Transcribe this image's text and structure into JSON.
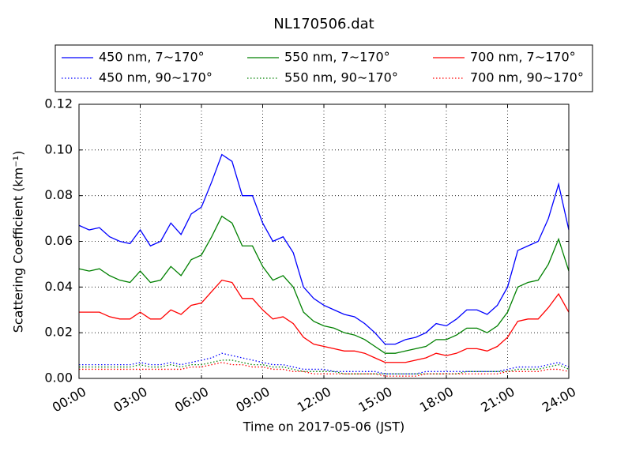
{
  "chart_data": {
    "type": "line",
    "title": "NL170506.dat",
    "xlabel": "Time on 2017-05-06 (JST)",
    "ylabel": "Scattering Coefficient (km⁻¹)",
    "x": [
      0,
      0.5,
      1,
      1.5,
      2,
      2.5,
      3,
      3.5,
      4,
      4.5,
      5,
      5.5,
      6,
      6.5,
      7,
      7.5,
      8,
      8.5,
      9,
      9.5,
      10,
      10.5,
      11,
      11.5,
      12,
      12.5,
      13,
      13.5,
      14,
      14.5,
      15,
      15.5,
      16,
      16.5,
      17,
      17.5,
      18,
      18.5,
      19,
      19.5,
      20,
      20.5,
      21,
      21.5,
      22,
      22.5,
      23,
      23.5,
      24
    ],
    "xlim": [
      0,
      24
    ],
    "xticks": [
      {
        "value": 0,
        "label": "00:00"
      },
      {
        "value": 3,
        "label": "03:00"
      },
      {
        "value": 6,
        "label": "06:00"
      },
      {
        "value": 9,
        "label": "09:00"
      },
      {
        "value": 12,
        "label": "12:00"
      },
      {
        "value": 15,
        "label": "15:00"
      },
      {
        "value": 18,
        "label": "18:00"
      },
      {
        "value": 21,
        "label": "21:00"
      },
      {
        "value": 24,
        "label": "24:00"
      }
    ],
    "ylim": [
      0,
      0.12
    ],
    "yticks": [
      {
        "value": 0,
        "label": "0.00"
      },
      {
        "value": 0.02,
        "label": "0.02"
      },
      {
        "value": 0.04,
        "label": "0.04"
      },
      {
        "value": 0.06,
        "label": "0.06"
      },
      {
        "value": 0.08,
        "label": "0.08"
      },
      {
        "value": 0.1,
        "label": "0.10"
      },
      {
        "value": 0.12,
        "label": "0.12"
      }
    ],
    "grid": true,
    "legend": "top",
    "series": [
      {
        "name": "450 nm, 7∼170°",
        "color": "#0000ff",
        "style": "solid",
        "values": [
          0.067,
          0.065,
          0.066,
          0.062,
          0.06,
          0.059,
          0.065,
          0.058,
          0.06,
          0.068,
          0.063,
          0.072,
          0.075,
          0.086,
          0.098,
          0.095,
          0.08,
          0.08,
          0.068,
          0.06,
          0.062,
          0.055,
          0.04,
          0.035,
          0.032,
          0.03,
          0.028,
          0.027,
          0.024,
          0.02,
          0.015,
          0.015,
          0.017,
          0.018,
          0.02,
          0.024,
          0.023,
          0.026,
          0.03,
          0.03,
          0.028,
          0.032,
          0.04,
          0.056,
          0.058,
          0.06,
          0.07,
          0.085,
          0.065
        ]
      },
      {
        "name": "550 nm, 7∼170°",
        "color": "#008000",
        "style": "solid",
        "values": [
          0.048,
          0.047,
          0.048,
          0.045,
          0.043,
          0.042,
          0.047,
          0.042,
          0.043,
          0.049,
          0.045,
          0.052,
          0.054,
          0.062,
          0.071,
          0.068,
          0.058,
          0.058,
          0.049,
          0.043,
          0.045,
          0.04,
          0.029,
          0.025,
          0.023,
          0.022,
          0.02,
          0.019,
          0.017,
          0.014,
          0.011,
          0.011,
          0.012,
          0.013,
          0.014,
          0.017,
          0.017,
          0.019,
          0.022,
          0.022,
          0.02,
          0.023,
          0.029,
          0.04,
          0.042,
          0.043,
          0.05,
          0.061,
          0.047
        ]
      },
      {
        "name": "700 nm, 7∼170°",
        "color": "#ff0000",
        "style": "solid",
        "values": [
          0.029,
          0.029,
          0.029,
          0.027,
          0.026,
          0.026,
          0.029,
          0.026,
          0.026,
          0.03,
          0.028,
          0.032,
          0.033,
          0.038,
          0.043,
          0.042,
          0.035,
          0.035,
          0.03,
          0.026,
          0.027,
          0.024,
          0.018,
          0.015,
          0.014,
          0.013,
          0.012,
          0.012,
          0.011,
          0.009,
          0.007,
          0.007,
          0.007,
          0.008,
          0.009,
          0.011,
          0.01,
          0.011,
          0.013,
          0.013,
          0.012,
          0.014,
          0.018,
          0.025,
          0.026,
          0.026,
          0.031,
          0.037,
          0.029
        ]
      },
      {
        "name": "450 nm, 90∼170°",
        "color": "#0000ff",
        "style": "dotted",
        "values": [
          0.006,
          0.006,
          0.006,
          0.006,
          0.006,
          0.006,
          0.007,
          0.006,
          0.006,
          0.007,
          0.006,
          0.007,
          0.008,
          0.009,
          0.011,
          0.01,
          0.009,
          0.008,
          0.007,
          0.006,
          0.006,
          0.005,
          0.004,
          0.004,
          0.004,
          0.003,
          0.003,
          0.003,
          0.003,
          0.003,
          0.002,
          0.002,
          0.002,
          0.002,
          0.003,
          0.003,
          0.003,
          0.003,
          0.003,
          0.003,
          0.003,
          0.003,
          0.004,
          0.005,
          0.005,
          0.005,
          0.006,
          0.007,
          0.005
        ]
      },
      {
        "name": "550 nm, 90∼170°",
        "color": "#008000",
        "style": "dotted",
        "values": [
          0.005,
          0.005,
          0.005,
          0.005,
          0.005,
          0.005,
          0.006,
          0.005,
          0.005,
          0.006,
          0.005,
          0.006,
          0.006,
          0.007,
          0.008,
          0.008,
          0.007,
          0.006,
          0.006,
          0.005,
          0.005,
          0.004,
          0.003,
          0.003,
          0.003,
          0.003,
          0.002,
          0.002,
          0.002,
          0.002,
          0.002,
          0.002,
          0.002,
          0.002,
          0.002,
          0.002,
          0.002,
          0.002,
          0.003,
          0.003,
          0.003,
          0.003,
          0.003,
          0.004,
          0.004,
          0.004,
          0.005,
          0.006,
          0.004
        ]
      },
      {
        "name": "700 nm, 90∼170°",
        "color": "#ff0000",
        "style": "dotted",
        "values": [
          0.004,
          0.004,
          0.004,
          0.004,
          0.004,
          0.004,
          0.004,
          0.004,
          0.004,
          0.004,
          0.004,
          0.005,
          0.005,
          0.006,
          0.007,
          0.006,
          0.006,
          0.005,
          0.005,
          0.004,
          0.004,
          0.003,
          0.003,
          0.002,
          0.002,
          0.002,
          0.002,
          0.002,
          0.002,
          0.002,
          0.001,
          0.001,
          0.001,
          0.001,
          0.002,
          0.002,
          0.002,
          0.002,
          0.002,
          0.002,
          0.002,
          0.002,
          0.003,
          0.003,
          0.003,
          0.003,
          0.004,
          0.004,
          0.003
        ]
      }
    ]
  }
}
